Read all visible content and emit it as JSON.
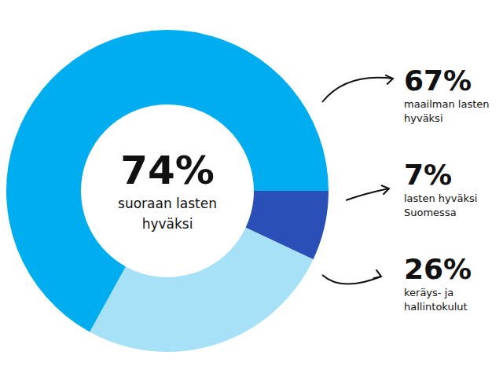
{
  "chart_data": {
    "type": "pie",
    "categories": [
      "maailman lasten hyväksi",
      "lasten hyväksi Suomessa",
      "keräys- ja hallintokulut"
    ],
    "values": [
      67,
      7,
      26
    ],
    "value_labels": [
      "67%",
      "7%",
      "26%"
    ],
    "colors": [
      "#00adef",
      "#2a50b8",
      "#a6e1f8"
    ],
    "data_labels": true,
    "center": {
      "value": 74,
      "value_label": "74%",
      "text": "suoraan lasten hyväksi"
    }
  }
}
